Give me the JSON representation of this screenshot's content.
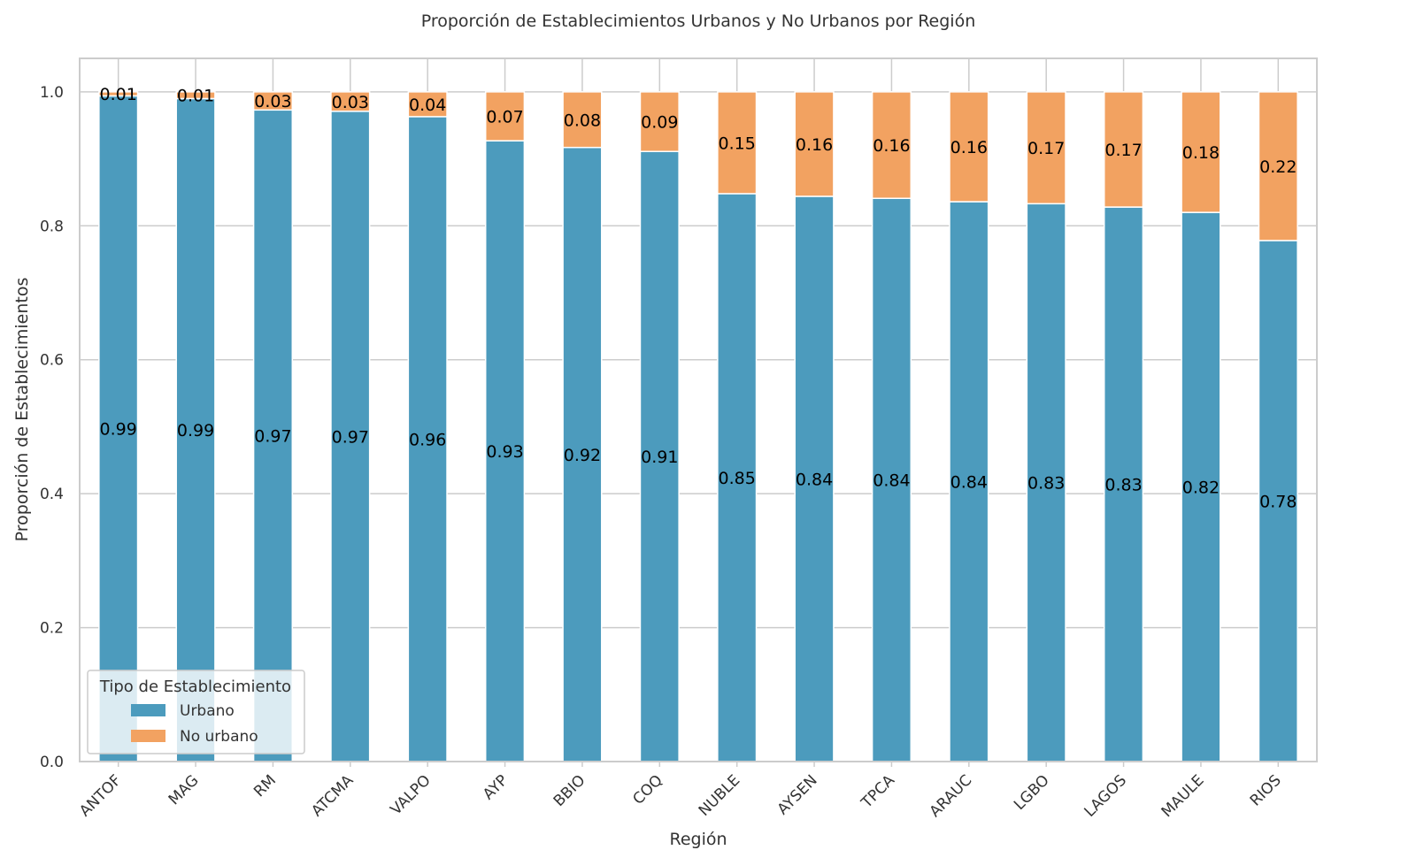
{
  "chart_data": {
    "type": "bar",
    "stacked": true,
    "title": "Proporción de Establecimientos Urbanos y No Urbanos por Región",
    "xlabel": "Región",
    "ylabel": "Proporción de Establecimientos",
    "ylim": [
      0,
      1.05
    ],
    "yticks": [
      "0.0",
      "0.2",
      "0.4",
      "0.6",
      "0.8",
      "1.0"
    ],
    "grid": true,
    "legend_title": "Tipo de Establecimiento",
    "legend_position": "lower-left",
    "categories": [
      "ANTOF",
      "MAG",
      "RM",
      "ATCMA",
      "VALPO",
      "AYP",
      "BBIO",
      "COQ",
      "NUBLE",
      "AYSEN",
      "TPCA",
      "ARAUC",
      "LGBO",
      "LAGOS",
      "MAULE",
      "RIOS"
    ],
    "series": [
      {
        "name": "Urbano",
        "color": "#4c9bbd",
        "values": [
          0.994,
          0.99,
          0.973,
          0.971,
          0.963,
          0.927,
          0.917,
          0.911,
          0.848,
          0.844,
          0.841,
          0.836,
          0.833,
          0.828,
          0.82,
          0.778
        ],
        "labels": [
          "0.99",
          "0.99",
          "0.97",
          "0.97",
          "0.96",
          "0.93",
          "0.92",
          "0.91",
          "0.85",
          "0.84",
          "0.84",
          "0.84",
          "0.83",
          "0.83",
          "0.82",
          "0.78"
        ]
      },
      {
        "name": "No urbano",
        "color": "#f2a261",
        "values": [
          0.006,
          0.01,
          0.027,
          0.029,
          0.037,
          0.073,
          0.083,
          0.089,
          0.152,
          0.156,
          0.159,
          0.164,
          0.167,
          0.172,
          0.18,
          0.222
        ],
        "labels": [
          "0.01",
          "0.01",
          "0.03",
          "0.03",
          "0.04",
          "0.07",
          "0.08",
          "0.09",
          "0.15",
          "0.16",
          "0.16",
          "0.16",
          "0.17",
          "0.17",
          "0.18",
          "0.22"
        ]
      }
    ]
  }
}
